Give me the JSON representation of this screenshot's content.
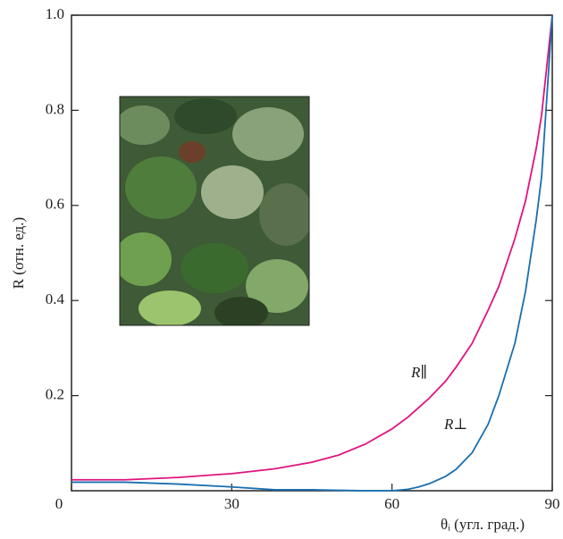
{
  "chart_data": {
    "type": "line",
    "x_label": "θᵢ (угл. град.)",
    "y_label": "R (отн. ед.)",
    "x": [
      0,
      10,
      20,
      30,
      38,
      45,
      50,
      55,
      60,
      63,
      65,
      67,
      70,
      72,
      75,
      78,
      80,
      83,
      85,
      87,
      88,
      90
    ],
    "series": [
      {
        "name": "R∥",
        "color": "#e0147f",
        "values": [
          0.023,
          0.023,
          0.028,
          0.036,
          0.046,
          0.06,
          0.075,
          0.098,
          0.13,
          0.155,
          0.175,
          0.195,
          0.23,
          0.26,
          0.31,
          0.38,
          0.43,
          0.53,
          0.61,
          0.72,
          0.79,
          1.0
        ]
      },
      {
        "name": "R⊥",
        "color": "#1a6fb0",
        "values": [
          0.018,
          0.018,
          0.014,
          0.008,
          0.002,
          0.002,
          0.001,
          0,
          0,
          0.003,
          0.008,
          0.015,
          0.03,
          0.045,
          0.08,
          0.14,
          0.2,
          0.31,
          0.42,
          0.57,
          0.66,
          1.0
        ]
      }
    ],
    "xlim": [
      0,
      90
    ],
    "ylim": [
      0,
      1
    ],
    "xticks": [
      0,
      30,
      60,
      90
    ],
    "yticks": [
      0.2,
      0.4,
      0.6,
      0.8,
      {
        "value": 1,
        "label": "1.0"
      }
    ]
  }
}
